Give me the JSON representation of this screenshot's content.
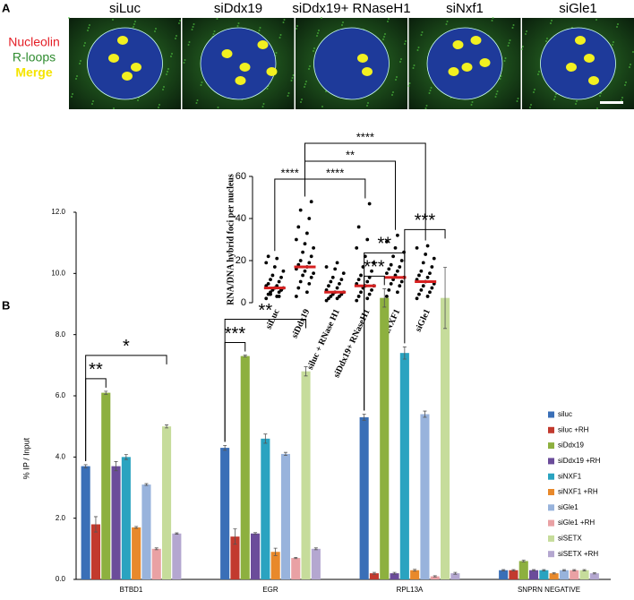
{
  "figure": {
    "panel_labels": [
      "A",
      "B"
    ],
    "image_titles": [
      "siLuc",
      "siDdx19",
      "siDdx19+ RNaseH1",
      "siNxf1",
      "siGle1"
    ],
    "channel_labels": [
      {
        "text": "Nucleolin",
        "color": "#e41e26"
      },
      {
        "text": "R-loops",
        "color": "#2e8b2e"
      },
      {
        "text": "Merge",
        "color": "#f5e400"
      }
    ]
  },
  "chart_data": [
    {
      "type": "dotplot",
      "ylabel": "RNA/DNA hybrid foci per nucleus",
      "categories": [
        "siLuc",
        "siDdx19",
        "siluc + RNase H1",
        "siDdx19+ RNaseH1",
        "siNXF1",
        "siGle1"
      ],
      "values": [
        7,
        17,
        5,
        8,
        12,
        10
      ],
      "mean_color": "#d62020",
      "points": [
        [
          2,
          3,
          4,
          5,
          5,
          6,
          6,
          7,
          7,
          8,
          8,
          9,
          10,
          11,
          12,
          13,
          15,
          17,
          19,
          21,
          22,
          3,
          4,
          6
        ],
        [
          3,
          5,
          7,
          9,
          10,
          12,
          13,
          14,
          15,
          16,
          17,
          18,
          19,
          20,
          22,
          24,
          26,
          28,
          30,
          33,
          36,
          40,
          44,
          48
        ],
        [
          1,
          2,
          2,
          3,
          3,
          4,
          4,
          5,
          5,
          6,
          7,
          8,
          9,
          10,
          11,
          12,
          14,
          16,
          17,
          19
        ],
        [
          1,
          2,
          3,
          4,
          5,
          6,
          7,
          8,
          8,
          9,
          10,
          11,
          12,
          13,
          15,
          17,
          19,
          22,
          26,
          30,
          36,
          47
        ],
        [
          3,
          5,
          6,
          8,
          9,
          10,
          11,
          12,
          13,
          14,
          15,
          16,
          17,
          18,
          20,
          22,
          24,
          26,
          29,
          32
        ],
        [
          2,
          3,
          4,
          5,
          6,
          7,
          8,
          9,
          10,
          11,
          12,
          13,
          14,
          15,
          17,
          19,
          21,
          23,
          26,
          27
        ]
      ],
      "ylim": [
        0,
        60
      ],
      "yticks": [
        0,
        20,
        40,
        60
      ],
      "significance": [
        {
          "from": "siDdx19",
          "to": "siLuc",
          "label": "****"
        },
        {
          "from": "siDdx19",
          "to": "siDdx19+ RNaseH1",
          "label": "****"
        },
        {
          "from": "siDdx19",
          "to": "siNXF1",
          "label": "**"
        },
        {
          "from": "siDdx19",
          "to": "siGle1",
          "label": "****"
        }
      ]
    },
    {
      "type": "bar",
      "ylabel": "% IP / Input",
      "categories": [
        "BTBD1",
        "EGR",
        "RPL13A",
        "SNPRN NEGATIVE"
      ],
      "ylim": [
        0,
        12
      ],
      "yticks": [
        {
          "value": 0,
          "label": "0.0"
        },
        {
          "value": 2,
          "label": "2.0"
        },
        {
          "value": 4,
          "label": "4.0"
        },
        {
          "value": 6,
          "label": "6.0"
        },
        {
          "value": 8,
          "label": "8.0"
        },
        {
          "value": 10,
          "label": "10.0"
        },
        {
          "value": 12,
          "label": "12.0"
        }
      ],
      "legend": "right",
      "series": [
        {
          "name": "siluc",
          "color": "#3a6fb7",
          "values": [
            3.7,
            4.3,
            5.3,
            0.3
          ],
          "errors": [
            0.05,
            0.08,
            0.1,
            0.02
          ]
        },
        {
          "name": "siluc +RH",
          "color": "#c23a2e",
          "values": [
            1.8,
            1.4,
            0.2,
            0.3
          ],
          "errors": [
            0.25,
            0.25,
            0.03,
            0.02
          ]
        },
        {
          "name": "siDdx19",
          "color": "#8db03f",
          "values": [
            6.1,
            7.3,
            9.2,
            0.6
          ],
          "errors": [
            0.05,
            0.03,
            0.3,
            0.03
          ]
        },
        {
          "name": "siDdx19 +RH",
          "color": "#6b4c9a",
          "values": [
            3.7,
            1.5,
            0.2,
            0.3
          ],
          "errors": [
            0.15,
            0.03,
            0.03,
            0.02
          ]
        },
        {
          "name": "siNXF1",
          "color": "#2aa3c0",
          "values": [
            4.0,
            4.6,
            7.4,
            0.3
          ],
          "errors": [
            0.08,
            0.15,
            0.2,
            0.02
          ]
        },
        {
          "name": "siNXF1 +RH",
          "color": "#e8892b",
          "values": [
            1.7,
            0.9,
            0.3,
            0.2
          ],
          "errors": [
            0.03,
            0.12,
            0.03,
            0.02
          ]
        },
        {
          "name": "siGle1",
          "color": "#98b3dc",
          "values": [
            3.1,
            4.1,
            5.4,
            0.3
          ],
          "errors": [
            0.03,
            0.05,
            0.1,
            0.02
          ]
        },
        {
          "name": "siGle1 +RH",
          "color": "#e9a1a4",
          "values": [
            1.0,
            0.7,
            0.1,
            0.3
          ],
          "errors": [
            0.03,
            0.02,
            0.02,
            0.02
          ]
        },
        {
          "name": "siSETX",
          "color": "#c6dc9b",
          "values": [
            5.0,
            6.8,
            9.2,
            0.3
          ],
          "errors": [
            0.05,
            0.15,
            1.0,
            0.02
          ]
        },
        {
          "name": "siSETX +RH",
          "color": "#b4a7d0",
          "values": [
            1.5,
            1.0,
            0.2,
            0.2
          ],
          "errors": [
            0.02,
            0.03,
            0.03,
            0.02
          ]
        }
      ],
      "significance": [
        {
          "category": "BTBD1",
          "from": "siluc",
          "to": "siDdx19",
          "label": "**"
        },
        {
          "category": "BTBD1",
          "from": "siluc",
          "to": "siSETX",
          "label": "*"
        },
        {
          "category": "EGR",
          "from": "siluc",
          "to": "siDdx19",
          "label": "***"
        },
        {
          "category": "EGR",
          "from": "siluc",
          "to": "siSETX",
          "label": "**"
        },
        {
          "category": "RPL13A",
          "from": "siluc",
          "to": "siDdx19",
          "label": "***"
        },
        {
          "category": "RPL13A",
          "from": "siluc",
          "to": "siNXF1",
          "label": "**"
        },
        {
          "category": "RPL13A",
          "from": "siNXF1",
          "to": "siSETX",
          "label": "***"
        }
      ]
    }
  ]
}
